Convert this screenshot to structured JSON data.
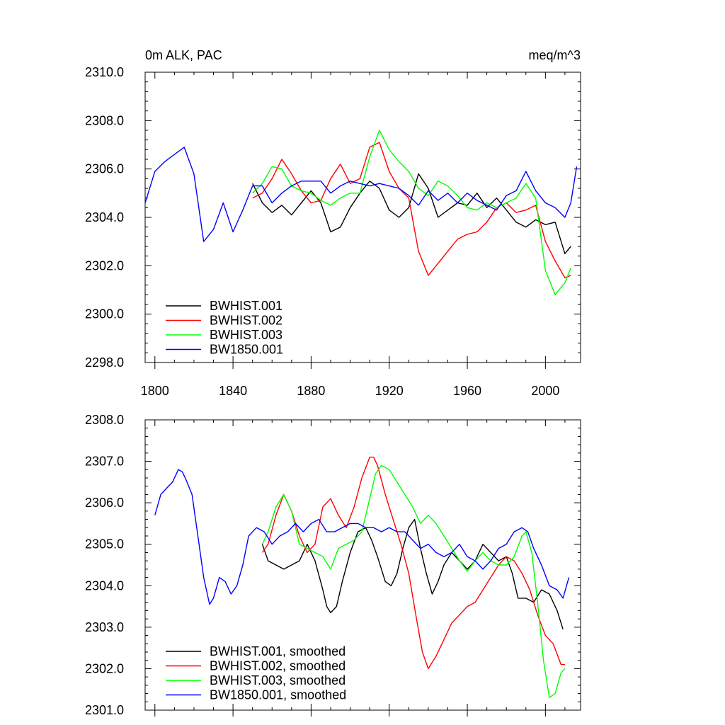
{
  "chart_data": [
    {
      "type": "line",
      "title": "0m ALK, PAC",
      "units": "meq/m^3",
      "xlim": [
        1795,
        2018
      ],
      "ylim": [
        2298,
        2310
      ],
      "xticks": [
        1800,
        1840,
        1880,
        1920,
        1960,
        2000
      ],
      "yticks": [
        2298.0,
        2300.0,
        2302.0,
        2304.0,
        2306.0,
        2308.0,
        2310.0
      ],
      "xtick_labels": [
        "1800",
        "1840",
        "1880",
        "1920",
        "1960",
        "2000"
      ],
      "ytick_labels": [
        "2298.0",
        "2300.0",
        "2302.0",
        "2304.0",
        "2306.0",
        "2308.0",
        "2310.0"
      ],
      "legend_position": "lower-left",
      "series": [
        {
          "name": "BWHIST.001",
          "color": "#000000",
          "x": [
            1850,
            1855,
            1860,
            1865,
            1870,
            1875,
            1880,
            1885,
            1890,
            1895,
            1900,
            1905,
            1910,
            1915,
            1920,
            1925,
            1930,
            1935,
            1940,
            1945,
            1950,
            1955,
            1960,
            1965,
            1970,
            1975,
            1980,
            1985,
            1990,
            1995,
            2000,
            2005,
            2010,
            2013
          ],
          "y": [
            2305.4,
            2304.6,
            2304.2,
            2304.5,
            2304.1,
            2304.6,
            2305.1,
            2304.6,
            2303.4,
            2303.6,
            2304.4,
            2305.0,
            2305.5,
            2305.2,
            2304.3,
            2304.0,
            2304.4,
            2305.8,
            2305.2,
            2304.0,
            2304.3,
            2304.6,
            2304.5,
            2305.0,
            2304.4,
            2304.8,
            2304.3,
            2303.8,
            2303.6,
            2303.9,
            2303.7,
            2303.8,
            2302.5,
            2302.8
          ]
        },
        {
          "name": "BWHIST.002",
          "color": "#ff0000",
          "x": [
            1850,
            1855,
            1860,
            1865,
            1870,
            1875,
            1880,
            1885,
            1890,
            1895,
            1900,
            1905,
            1910,
            1915,
            1920,
            1925,
            1930,
            1935,
            1940,
            1945,
            1950,
            1955,
            1960,
            1965,
            1970,
            1975,
            1980,
            1985,
            1990,
            1995,
            2000,
            2005,
            2010,
            2013
          ],
          "y": [
            2304.8,
            2305.0,
            2305.6,
            2306.4,
            2305.8,
            2305.1,
            2304.6,
            2304.7,
            2305.6,
            2306.2,
            2305.4,
            2305.6,
            2306.9,
            2307.1,
            2305.9,
            2305.2,
            2304.8,
            2302.6,
            2301.6,
            2302.1,
            2302.6,
            2303.1,
            2303.3,
            2303.4,
            2303.8,
            2304.4,
            2304.6,
            2304.2,
            2304.3,
            2304.5,
            2303.0,
            2302.2,
            2301.5,
            2301.6
          ]
        },
        {
          "name": "BWHIST.003",
          "color": "#00ff00",
          "x": [
            1850,
            1855,
            1860,
            1865,
            1870,
            1875,
            1880,
            1885,
            1890,
            1895,
            1900,
            1905,
            1910,
            1915,
            1920,
            1925,
            1930,
            1935,
            1940,
            1945,
            1950,
            1955,
            1960,
            1965,
            1970,
            1975,
            1980,
            1985,
            1990,
            1995,
            2000,
            2005,
            2010,
            2013
          ],
          "y": [
            2305.0,
            2305.4,
            2306.1,
            2306.0,
            2305.3,
            2305.1,
            2305.0,
            2304.7,
            2304.5,
            2304.8,
            2305.0,
            2305.0,
            2306.5,
            2307.6,
            2306.8,
            2306.3,
            2305.9,
            2305.2,
            2304.9,
            2305.5,
            2305.3,
            2304.9,
            2304.4,
            2304.3,
            2304.6,
            2304.4,
            2304.6,
            2304.8,
            2305.4,
            2304.8,
            2301.8,
            2300.8,
            2301.3,
            2301.9
          ]
        },
        {
          "name": "BW1850.001",
          "color": "#0000ff",
          "x": [
            1795,
            1800,
            1805,
            1810,
            1815,
            1820,
            1825,
            1830,
            1835,
            1840,
            1845,
            1850,
            1855,
            1860,
            1865,
            1870,
            1875,
            1880,
            1885,
            1890,
            1895,
            1900,
            1905,
            1910,
            1915,
            1920,
            1925,
            1930,
            1935,
            1940,
            1945,
            1950,
            1955,
            1960,
            1965,
            1970,
            1975,
            1980,
            1985,
            1990,
            1995,
            2000,
            2005,
            2010,
            2013,
            2016
          ],
          "y": [
            2304.6,
            2305.9,
            2306.3,
            2306.6,
            2306.9,
            2305.8,
            2303.0,
            2303.5,
            2304.6,
            2303.4,
            2304.3,
            2305.3,
            2305.3,
            2304.6,
            2305.0,
            2305.3,
            2305.5,
            2305.5,
            2305.5,
            2305.0,
            2305.3,
            2305.5,
            2305.4,
            2305.3,
            2305.4,
            2305.3,
            2305.2,
            2304.9,
            2304.5,
            2305.1,
            2304.7,
            2305.0,
            2304.6,
            2305.0,
            2304.7,
            2304.5,
            2304.3,
            2304.9,
            2305.1,
            2305.9,
            2305.1,
            2304.6,
            2304.4,
            2304.0,
            2304.6,
            2306.1
          ]
        }
      ]
    },
    {
      "type": "line",
      "xlim": [
        1795,
        2018
      ],
      "ylim": [
        2301,
        2308
      ],
      "xticks": [
        1800,
        1840,
        1880,
        1920,
        1960,
        2000
      ],
      "yticks": [
        2301.0,
        2302.0,
        2303.0,
        2304.0,
        2305.0,
        2306.0,
        2307.0,
        2308.0
      ],
      "ytick_labels": [
        "2301.0",
        "2302.0",
        "2303.0",
        "2304.0",
        "2305.0",
        "2306.0",
        "2307.0",
        "2308.0"
      ],
      "legend_position": "lower-left",
      "series": [
        {
          "name": "BWHIST.001, smoothed",
          "color": "#000000",
          "x": [
            1855,
            1858,
            1862,
            1866,
            1870,
            1874,
            1878,
            1882,
            1886,
            1888,
            1890,
            1893,
            1896,
            1900,
            1904,
            1908,
            1911,
            1914,
            1918,
            1921,
            1924,
            1927,
            1930,
            1933,
            1936,
            1939,
            1942,
            1945,
            1948,
            1952,
            1956,
            1960,
            1964,
            1968,
            1972,
            1976,
            1980,
            1983,
            1986,
            1990,
            1994,
            1998,
            2002,
            2006,
            2009
          ],
          "y": [
            2305.0,
            2304.6,
            2304.5,
            2304.4,
            2304.5,
            2304.6,
            2305.0,
            2304.6,
            2303.9,
            2303.5,
            2303.35,
            2303.5,
            2304.1,
            2304.8,
            2305.3,
            2305.4,
            2305.1,
            2304.7,
            2304.1,
            2304.0,
            2304.3,
            2304.9,
            2305.4,
            2305.6,
            2304.9,
            2304.3,
            2303.8,
            2304.1,
            2304.5,
            2304.8,
            2304.6,
            2304.4,
            2304.6,
            2305.0,
            2304.8,
            2304.6,
            2304.7,
            2304.3,
            2303.7,
            2303.7,
            2303.6,
            2303.9,
            2303.8,
            2303.4,
            2302.95
          ]
        },
        {
          "name": "BWHIST.002, smoothed",
          "color": "#ff0000",
          "x": [
            1855,
            1858,
            1862,
            1866,
            1870,
            1874,
            1878,
            1882,
            1886,
            1890,
            1894,
            1898,
            1902,
            1906,
            1910,
            1912,
            1914,
            1918,
            1922,
            1926,
            1930,
            1934,
            1937,
            1940,
            1944,
            1948,
            1952,
            1956,
            1960,
            1964,
            1968,
            1972,
            1976,
            1980,
            1984,
            1988,
            1992,
            1996,
            2000,
            2004,
            2008,
            2010
          ],
          "y": [
            2304.8,
            2305.0,
            2305.7,
            2306.2,
            2305.8,
            2305.2,
            2304.8,
            2305.0,
            2305.9,
            2306.1,
            2305.7,
            2305.4,
            2305.9,
            2306.6,
            2307.1,
            2307.1,
            2306.9,
            2306.2,
            2305.6,
            2305.0,
            2304.3,
            2303.2,
            2302.4,
            2302.0,
            2302.3,
            2302.7,
            2303.1,
            2303.3,
            2303.5,
            2303.6,
            2303.9,
            2304.2,
            2304.5,
            2304.7,
            2304.6,
            2304.3,
            2303.9,
            2303.3,
            2302.8,
            2302.6,
            2302.1,
            2302.1
          ]
        },
        {
          "name": "BWHIST.003, smoothed",
          "color": "#00ff00",
          "x": [
            1855,
            1858,
            1862,
            1866,
            1870,
            1874,
            1878,
            1882,
            1886,
            1890,
            1894,
            1898,
            1902,
            1906,
            1910,
            1913,
            1916,
            1920,
            1924,
            1928,
            1932,
            1936,
            1940,
            1944,
            1948,
            1952,
            1956,
            1960,
            1964,
            1968,
            1972,
            1976,
            1980,
            1984,
            1988,
            1990,
            1993,
            1996,
            1999,
            2002,
            2005,
            2008,
            2010
          ],
          "y": [
            2305.0,
            2305.3,
            2305.9,
            2306.2,
            2305.8,
            2305.0,
            2304.9,
            2304.8,
            2304.7,
            2304.4,
            2304.9,
            2305.0,
            2305.1,
            2305.3,
            2306.1,
            2306.7,
            2306.9,
            2306.8,
            2306.5,
            2306.2,
            2305.9,
            2305.5,
            2305.7,
            2305.5,
            2305.2,
            2304.9,
            2304.6,
            2304.35,
            2304.6,
            2304.8,
            2304.6,
            2304.5,
            2304.5,
            2304.7,
            2305.2,
            2305.3,
            2304.8,
            2303.6,
            2302.2,
            2301.3,
            2301.4,
            2301.9,
            2302.0
          ]
        },
        {
          "name": "BW1850.001, smoothed",
          "color": "#0000ff",
          "x": [
            1800,
            1803,
            1806,
            1809,
            1812,
            1814,
            1816,
            1819,
            1822,
            1825,
            1828,
            1830,
            1833,
            1836,
            1839,
            1842,
            1845,
            1848,
            1852,
            1856,
            1860,
            1864,
            1868,
            1872,
            1876,
            1880,
            1884,
            1888,
            1892,
            1896,
            1900,
            1904,
            1908,
            1912,
            1916,
            1920,
            1924,
            1928,
            1932,
            1936,
            1940,
            1944,
            1948,
            1952,
            1956,
            1960,
            1964,
            1968,
            1972,
            1976,
            1980,
            1984,
            1988,
            1991,
            1994,
            1998,
            2002,
            2006,
            2009,
            2012
          ],
          "y": [
            2305.7,
            2306.2,
            2306.35,
            2306.5,
            2306.8,
            2306.75,
            2306.55,
            2306.2,
            2305.2,
            2304.2,
            2303.55,
            2303.7,
            2304.2,
            2304.1,
            2303.8,
            2304.0,
            2304.5,
            2305.2,
            2305.4,
            2305.3,
            2305.0,
            2305.2,
            2305.3,
            2305.5,
            2305.3,
            2305.5,
            2305.6,
            2305.3,
            2305.3,
            2305.4,
            2305.5,
            2305.5,
            2305.4,
            2305.4,
            2305.3,
            2305.4,
            2305.3,
            2305.3,
            2305.1,
            2304.9,
            2305.0,
            2304.8,
            2304.7,
            2304.8,
            2305.0,
            2304.7,
            2304.6,
            2304.4,
            2304.6,
            2304.9,
            2305.0,
            2305.3,
            2305.4,
            2305.3,
            2304.9,
            2304.5,
            2304.0,
            2303.9,
            2303.7,
            2304.2
          ]
        }
      ]
    }
  ]
}
